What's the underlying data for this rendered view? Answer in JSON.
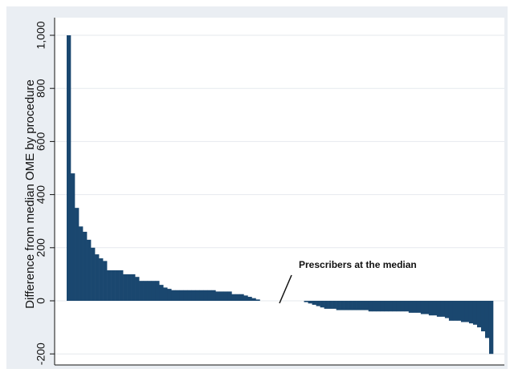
{
  "chart_data": {
    "type": "bar",
    "y_label": "Difference from median OME by procedure",
    "annotation": "Prescribers at the median",
    "color": "#1a476f",
    "grid": true,
    "ylim": [
      -210,
      1000
    ],
    "yticks": [
      -200,
      0,
      200,
      400,
      600,
      800,
      {
        "value": 1000,
        "label": "1,000"
      }
    ],
    "categories": [
      null,
      null,
      null,
      null,
      null,
      null,
      null,
      null,
      null,
      null,
      null,
      null,
      null,
      null,
      null,
      null,
      null,
      null,
      null,
      null,
      null,
      null,
      null,
      null,
      null,
      null,
      null,
      null,
      null,
      null,
      null,
      null,
      null,
      null,
      null,
      null,
      null,
      null,
      null,
      null,
      null,
      null,
      null,
      null,
      null,
      null,
      null,
      null,
      null,
      null,
      null,
      null,
      null,
      null,
      null,
      null,
      null,
      null,
      null,
      null,
      null,
      null,
      null,
      null,
      null,
      null,
      null,
      null,
      null,
      null,
      null,
      null,
      null,
      null,
      null,
      null,
      null,
      null,
      null,
      null,
      null,
      null,
      null,
      null,
      null,
      null,
      null,
      null,
      null,
      null,
      null,
      null,
      null,
      null,
      null,
      null,
      null,
      null,
      null,
      null,
      null,
      null,
      null,
      null,
      null,
      null
    ],
    "values": [
      1000,
      480,
      350,
      280,
      260,
      230,
      200,
      175,
      160,
      150,
      115,
      115,
      115,
      115,
      100,
      100,
      100,
      90,
      75,
      75,
      75,
      75,
      75,
      60,
      50,
      45,
      40,
      40,
      40,
      40,
      40,
      40,
      40,
      40,
      40,
      40,
      40,
      35,
      35,
      35,
      35,
      25,
      25,
      25,
      20,
      15,
      10,
      5,
      0,
      0,
      0,
      0,
      0,
      0,
      0,
      0,
      0,
      0,
      0,
      -5,
      -10,
      -15,
      -20,
      -25,
      -30,
      -30,
      -30,
      -35,
      -35,
      -35,
      -35,
      -35,
      -35,
      -35,
      -35,
      -40,
      -40,
      -40,
      -40,
      -40,
      -40,
      -40,
      -40,
      -40,
      -40,
      -45,
      -45,
      -45,
      -50,
      -50,
      -55,
      -55,
      -60,
      -60,
      -65,
      -75,
      -75,
      -75,
      -80,
      -80,
      -85,
      -90,
      -100,
      -115,
      -140,
      -200
    ]
  }
}
